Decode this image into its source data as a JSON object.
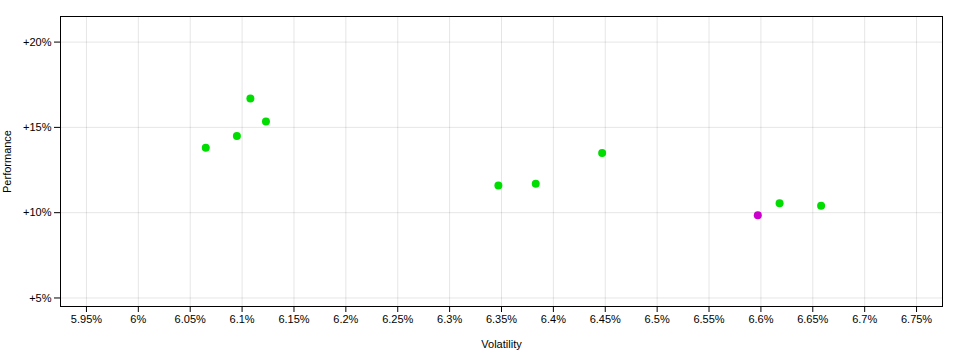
{
  "chart_data": {
    "type": "scatter",
    "xlabel": "Volatility",
    "ylabel": "Performance",
    "xlim": [
      5.925,
      6.775
    ],
    "ylim": [
      4.5,
      21.5
    ],
    "xticks": [
      {
        "value": 5.95,
        "label": "5.95%"
      },
      {
        "value": 6.0,
        "label": "6%"
      },
      {
        "value": 6.05,
        "label": "6.05%"
      },
      {
        "value": 6.1,
        "label": "6.1%"
      },
      {
        "value": 6.15,
        "label": "6.15%"
      },
      {
        "value": 6.2,
        "label": "6.2%"
      },
      {
        "value": 6.25,
        "label": "6.25%"
      },
      {
        "value": 6.3,
        "label": "6.3%"
      },
      {
        "value": 6.35,
        "label": "6.35%"
      },
      {
        "value": 6.4,
        "label": "6.4%"
      },
      {
        "value": 6.45,
        "label": "6.45%"
      },
      {
        "value": 6.5,
        "label": "6.5%"
      },
      {
        "value": 6.55,
        "label": "6.55%"
      },
      {
        "value": 6.6,
        "label": "6.6%"
      },
      {
        "value": 6.65,
        "label": "6.65%"
      },
      {
        "value": 6.7,
        "label": "6.7%"
      },
      {
        "value": 6.75,
        "label": "6.75%"
      }
    ],
    "yticks": [
      {
        "value": 5,
        "label": "+5%"
      },
      {
        "value": 10,
        "label": "+10%"
      },
      {
        "value": 15,
        "label": "+15%"
      },
      {
        "value": 20,
        "label": "+20%"
      }
    ],
    "grid": true,
    "series": [
      {
        "color": "#00dd00",
        "x": [
          6.065,
          6.095,
          6.108,
          6.123,
          6.447,
          6.347,
          6.383,
          6.618,
          6.658
        ],
        "values": [
          13.8,
          14.5,
          16.7,
          15.35,
          13.5,
          11.6,
          11.7,
          10.55,
          10.4
        ]
      },
      {
        "color": "#cc00cc",
        "x": [
          6.597
        ],
        "values": [
          9.85
        ]
      }
    ]
  }
}
